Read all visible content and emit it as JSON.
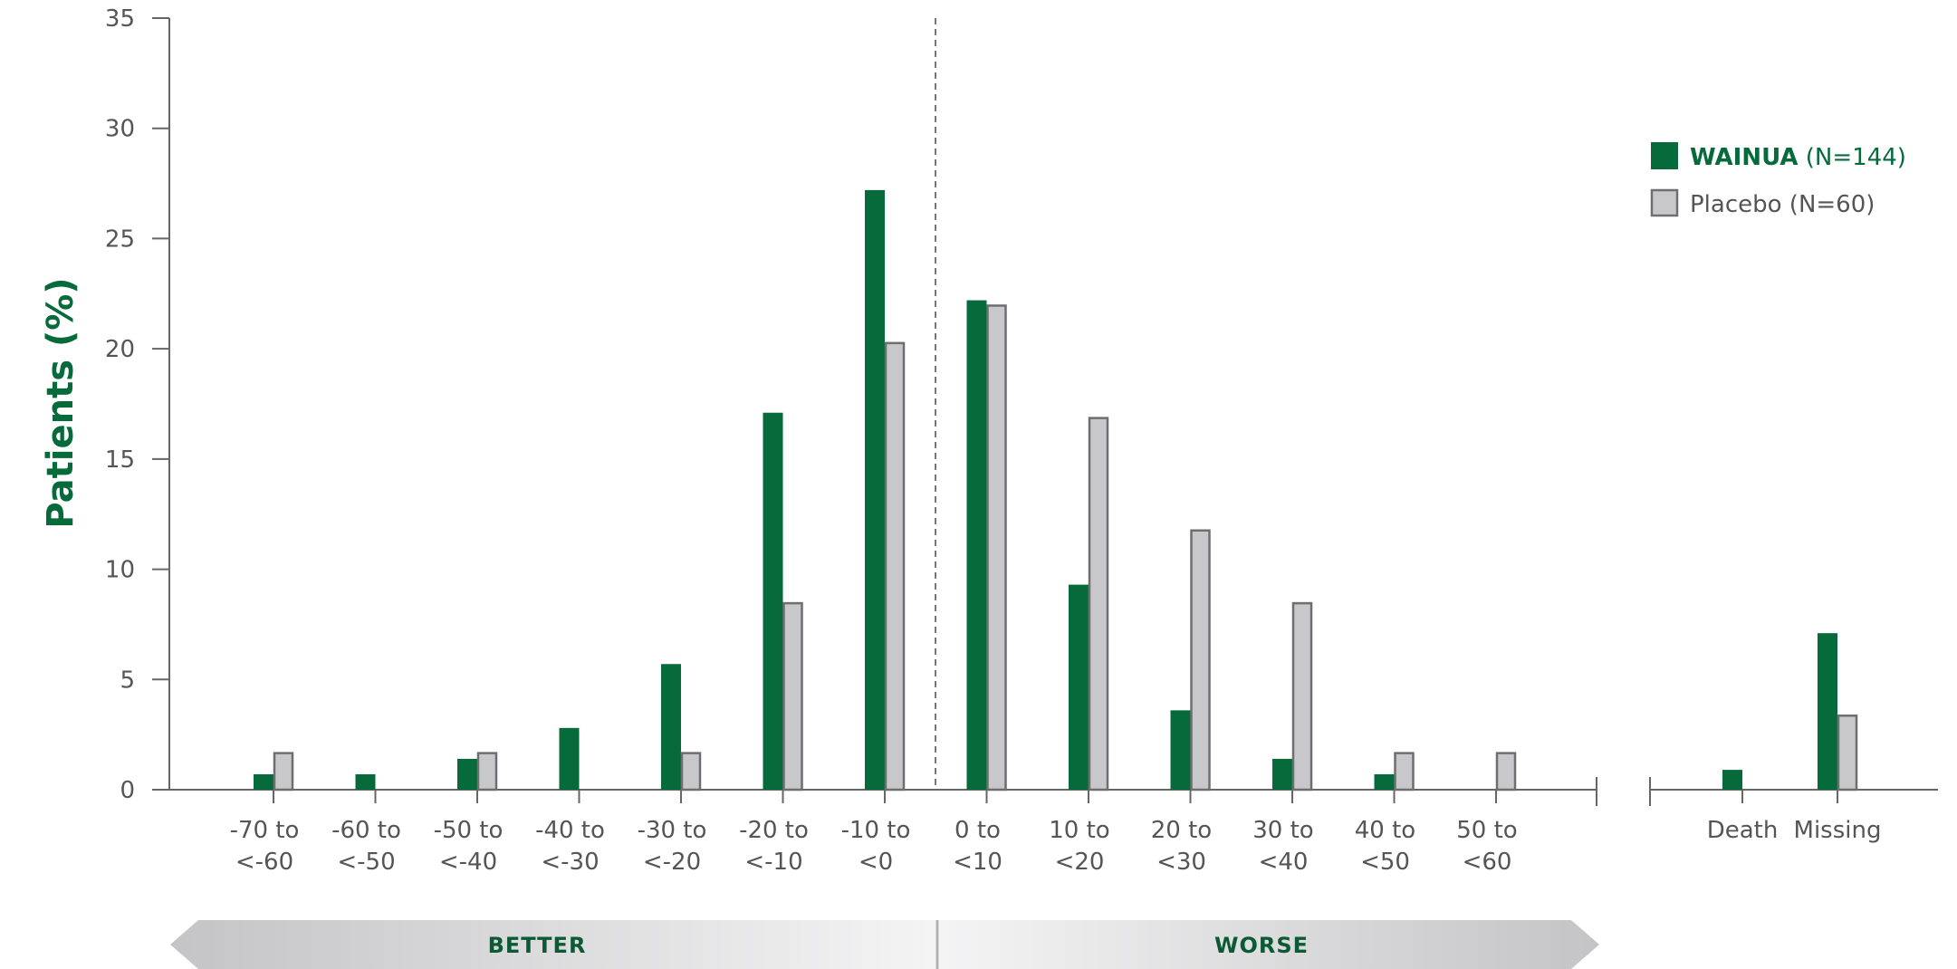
{
  "colors": {
    "series1": "#076a3b",
    "series2": "#c8c8ca",
    "series2_stroke": "#6e6e70",
    "axis": "#666666",
    "label": "#076a3b"
  },
  "chart_data": {
    "type": "bar",
    "ylabel": "Patients (%)",
    "ylim": [
      0,
      35
    ],
    "yticks": [
      "0",
      "5",
      "10",
      "15",
      "20",
      "25",
      "30",
      "35"
    ],
    "categories": [
      [
        "-70 to",
        "<-60"
      ],
      [
        "-60 to",
        "<-50"
      ],
      [
        "-50 to",
        "<-40"
      ],
      [
        "-40 to",
        "<-30"
      ],
      [
        "-30 to",
        "<-20"
      ],
      [
        "-20 to",
        "<-10"
      ],
      [
        "-10 to",
        "<0"
      ],
      [
        "0 to",
        "<10"
      ],
      [
        "10 to",
        "<20"
      ],
      [
        "20 to",
        "<30"
      ],
      [
        "30 to",
        "<40"
      ],
      [
        "40 to",
        "<50"
      ],
      [
        "50 to",
        "<60"
      ]
    ],
    "extra_categories": [
      "Death",
      "Missing"
    ],
    "series": [
      {
        "name_bold": "WAINUA",
        "name_rest": " (N=144)",
        "values": [
          0.7,
          0.7,
          1.4,
          2.8,
          5.7,
          17.1,
          27.2,
          22.2,
          9.3,
          3.6,
          1.4,
          0.7,
          0
        ],
        "extra_values": [
          0.9,
          7.1
        ]
      },
      {
        "name_bold": "",
        "name_rest": "Placebo (N=60)",
        "values": [
          1.7,
          0,
          1.7,
          0,
          1.7,
          8.5,
          20.3,
          22.0,
          16.9,
          11.8,
          8.5,
          1.7,
          1.7
        ],
        "extra_values": [
          0,
          3.4
        ]
      }
    ],
    "grid": false,
    "legend_position": "top-right",
    "divider_between": [
      "-10 to <0",
      "0 to <10"
    ],
    "better_label": "BETTER",
    "worse_label": "WORSE"
  }
}
